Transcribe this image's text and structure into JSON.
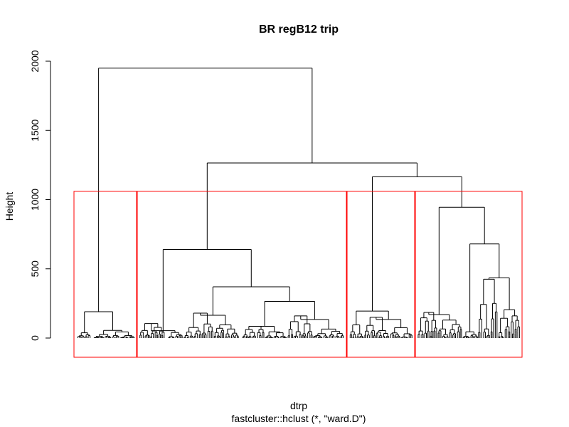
{
  "chart_data": {
    "type": "dendrogram",
    "title": "BR regB12  trip",
    "xlabel": "dtrp",
    "sublabel": "fastcluster::hclust (*, \"ward.D\")",
    "ylabel": "Height",
    "ylim": [
      0,
      2000
    ],
    "yticks": [
      0,
      500,
      1000,
      1500,
      2000
    ],
    "line_color": "#000000",
    "box_color": "#ff0000",
    "cut_height": 1060,
    "n_clusters": 4,
    "merges": [
      {
        "height": 1950,
        "children": [
          "cluster-1",
          "upper-branch"
        ]
      },
      {
        "height": 1265,
        "children": [
          "cluster-2",
          "right-branch"
        ]
      },
      {
        "height": 1165,
        "children": [
          "cluster-3",
          "cluster-4"
        ]
      },
      {
        "height": 945,
        "note": "cluster-4 top split"
      },
      {
        "height": 680,
        "note": "cluster-4 inner split"
      },
      {
        "height": 640,
        "note": "cluster-2 top split"
      },
      {
        "height": 370,
        "note": "cluster-2 inner split"
      },
      {
        "height": 265,
        "note": "cluster-2 right subtree"
      },
      {
        "height": 195,
        "note": "cluster-3 top split"
      },
      {
        "height": 190,
        "note": "cluster-1 top split"
      }
    ]
  }
}
